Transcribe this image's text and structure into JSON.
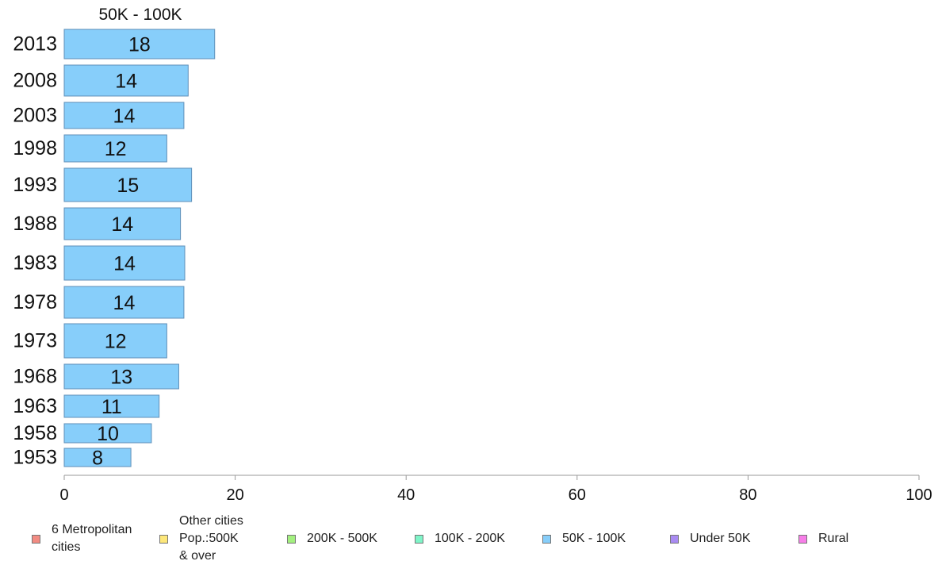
{
  "chart_data": {
    "type": "bar",
    "orientation": "horizontal",
    "title": "50K - 100K",
    "categories": [
      "2013",
      "2008",
      "2003",
      "1998",
      "1993",
      "1988",
      "1983",
      "1978",
      "1973",
      "1968",
      "1963",
      "1958",
      "1953"
    ],
    "series": [
      {
        "name": "50K - 100K",
        "color": "#87cefa",
        "values": [
          17.6,
          14.5,
          14.0,
          12.0,
          14.9,
          13.6,
          14.1,
          14.0,
          12.0,
          13.4,
          11.1,
          10.2,
          7.8
        ],
        "value_labels": [
          "18",
          "14",
          "14",
          "12",
          "15",
          "14",
          "14",
          "14",
          "12",
          "13",
          "11",
          "10",
          "8"
        ]
      }
    ],
    "xlim": [
      0,
      100
    ],
    "xticks": [
      "0",
      "20",
      "40",
      "60",
      "80",
      "100"
    ],
    "grid": false,
    "legend_placement": "bottom",
    "legend": [
      {
        "label": "6 Metropolitan\n cities",
        "color": "#f28b82"
      },
      {
        "label": "Other cities\nPop.:500K\n & over",
        "color": "#fde77a"
      },
      {
        "label": "200K - 500K",
        "color": "#a3f07f"
      },
      {
        "label": "100K - 200K",
        "color": "#7ff5c8"
      },
      {
        "label": "50K - 100K",
        "color": "#87cefa"
      },
      {
        "label": "Under 50K",
        "color": "#a98bf2"
      },
      {
        "label": "Rural",
        "color": "#f77ee8"
      }
    ]
  }
}
